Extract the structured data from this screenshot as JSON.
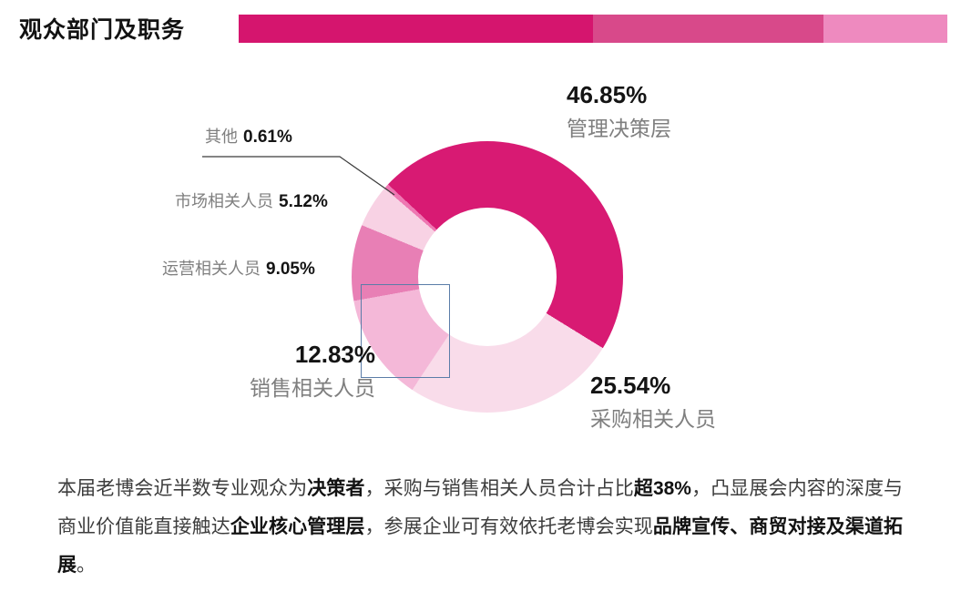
{
  "header": {
    "title": "观众部门及职务",
    "bar_segments": [
      {
        "color": "#d5156e",
        "width_pct": 50
      },
      {
        "color": "#d8498a",
        "width_pct": 32.5
      },
      {
        "color": "#ee8abf",
        "width_pct": 17.5
      }
    ]
  },
  "chart_data": {
    "type": "pie",
    "subtype": "donut",
    "title": "观众部门及职务",
    "start_angle_deg": -47,
    "inner_radius_ratio": 0.51,
    "legend_position": "callout-labels",
    "segments": [
      {
        "label": "管理决策层",
        "value": 46.85,
        "display": "46.85%",
        "color": "#d81a73"
      },
      {
        "label": "采购相关人员",
        "value": 25.54,
        "display": "25.54%",
        "color": "#f9dcea"
      },
      {
        "label": "销售相关人员",
        "value": 12.83,
        "display": "12.83%",
        "color": "#f4b8d8"
      },
      {
        "label": "运营相关人员",
        "value": 9.05,
        "display": "9.05%",
        "color": "#e87fb5"
      },
      {
        "label": "市场相关人员",
        "value": 5.12,
        "display": "5.12%",
        "color": "#f8d2e4"
      },
      {
        "label": "其他",
        "value": 0.61,
        "display": "0.61%",
        "color": "#ee77b2"
      }
    ]
  },
  "callouts": {
    "management": {
      "pct": "46.85%",
      "name": "管理决策层"
    },
    "procurement": {
      "pct": "25.54%",
      "name": "采购相关人员"
    },
    "sales": {
      "pct": "12.83%",
      "name": "销售相关人员"
    },
    "operations": {
      "name": "运营相关人员",
      "pct": "9.05%"
    },
    "marketing": {
      "name": "市场相关人员",
      "pct": "5.12%"
    },
    "other": {
      "name": "其他",
      "pct": "0.61%"
    }
  },
  "summary": {
    "runs": [
      {
        "text": "本届老博会近半数专业观众为",
        "bold": false
      },
      {
        "text": "决策者",
        "bold": true
      },
      {
        "text": "，采购与销售相关人员合计占比",
        "bold": false
      },
      {
        "text": "超38%",
        "bold": true
      },
      {
        "text": "，凸显展会内容的深度与商业价值能直接触达",
        "bold": false
      },
      {
        "text": "企业核心管理层",
        "bold": true
      },
      {
        "text": "，参展企业可有效依托老博会实现",
        "bold": false
      },
      {
        "text": "品牌宣传、商贸对接及渠道拓展",
        "bold": true
      },
      {
        "text": "。",
        "bold": false
      }
    ]
  }
}
